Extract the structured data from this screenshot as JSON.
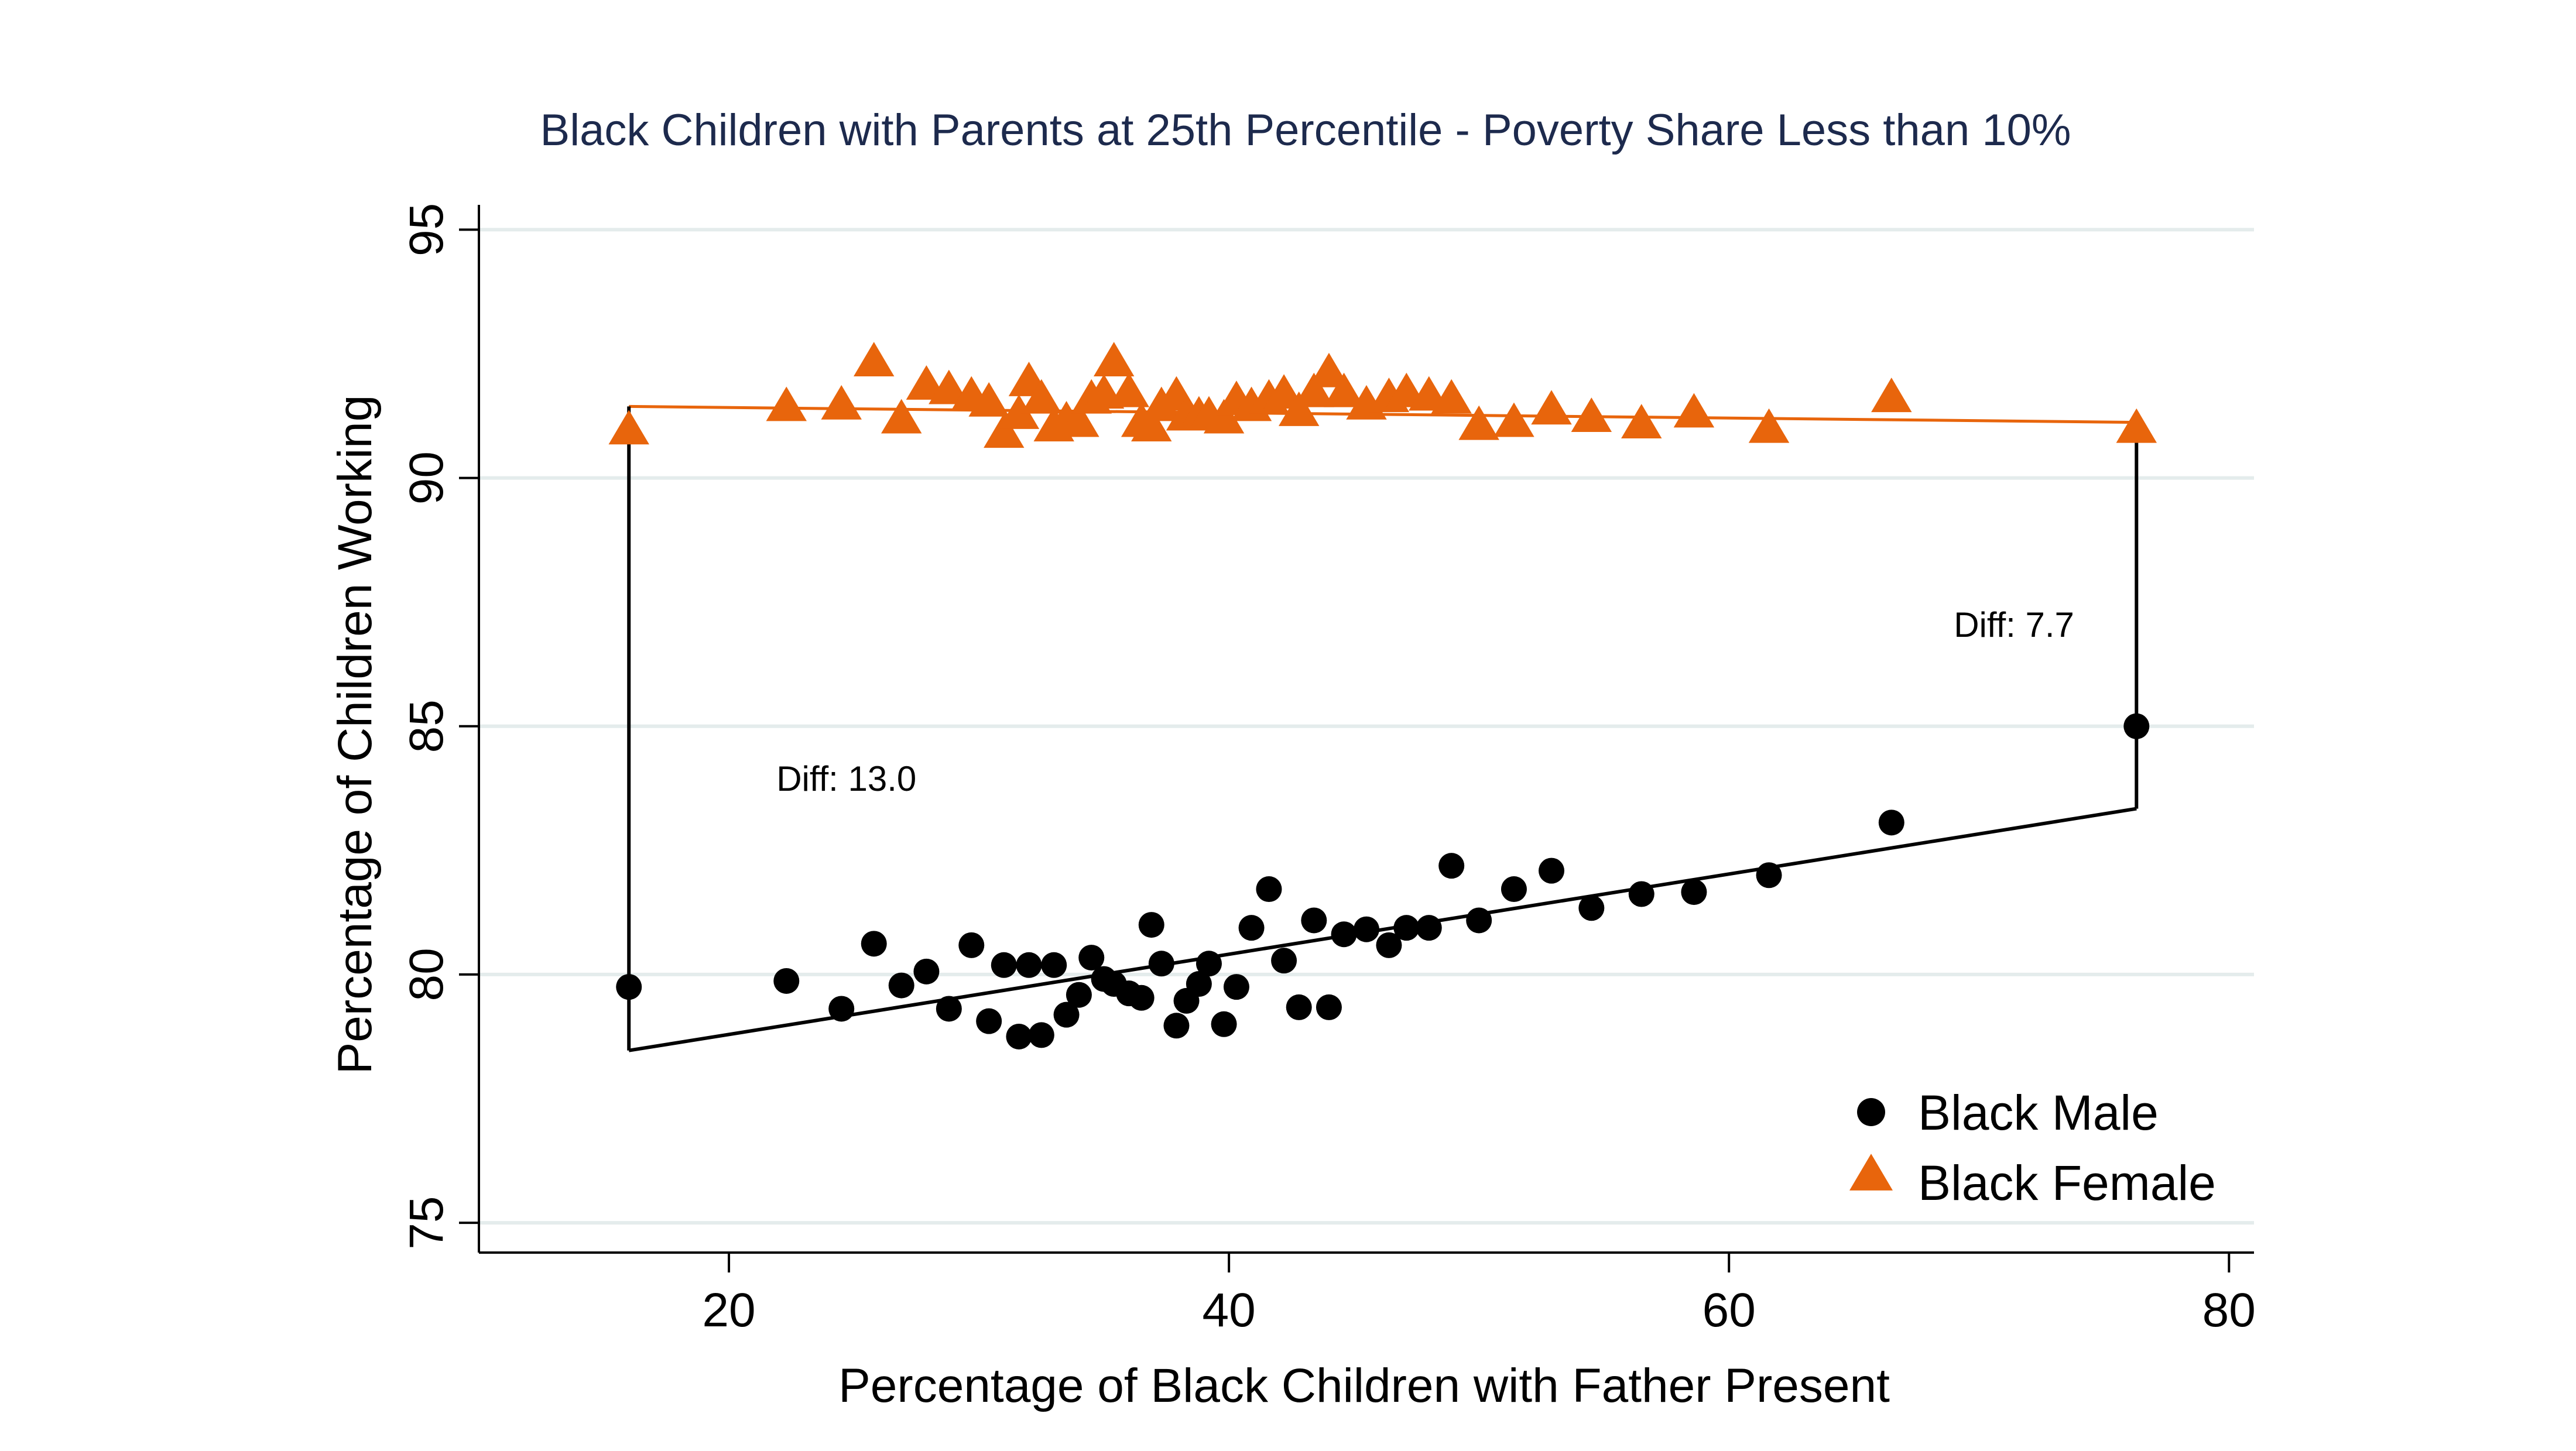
{
  "chart_data": {
    "type": "scatter",
    "title": "Black Children with Parents at 25th Percentile - Poverty Share Less than 10%",
    "xlabel": "Percentage of Black Children with Father Present",
    "ylabel": "Percentage of Children Working",
    "xlim": [
      10,
      81
    ],
    "ylim": [
      74.4,
      95.5
    ],
    "xticks": [
      20,
      40,
      60,
      80
    ],
    "yticks": [
      75,
      80,
      85,
      90,
      95
    ],
    "xtick_labels": [
      "20",
      "40",
      "60",
      "80"
    ],
    "ytick_labels": [
      "75",
      "80",
      "85",
      "90",
      "95"
    ],
    "grid": "horizontal",
    "legend_position": "bottom-right",
    "colors": {
      "male": "#000000",
      "female": "#e8650c",
      "grid": "#e4ecec",
      "title": "#1d2a4d"
    },
    "series": [
      {
        "name": "Black Male",
        "marker": "circle",
        "points": [
          [
            16.0,
            79.75
          ],
          [
            22.3,
            79.87
          ],
          [
            24.5,
            79.31
          ],
          [
            25.8,
            80.62
          ],
          [
            26.9,
            79.78
          ],
          [
            27.9,
            80.06
          ],
          [
            28.8,
            79.31
          ],
          [
            29.7,
            80.59
          ],
          [
            30.4,
            79.06
          ],
          [
            31.0,
            80.19
          ],
          [
            31.6,
            78.75
          ],
          [
            32.0,
            80.19
          ],
          [
            32.5,
            78.78
          ],
          [
            33.0,
            80.19
          ],
          [
            33.5,
            79.19
          ],
          [
            34.0,
            79.59
          ],
          [
            34.5,
            80.34
          ],
          [
            35.0,
            79.91
          ],
          [
            35.4,
            79.81
          ],
          [
            36.0,
            79.62
          ],
          [
            36.5,
            79.53
          ],
          [
            36.9,
            81.0
          ],
          [
            37.3,
            80.22
          ],
          [
            37.9,
            78.97
          ],
          [
            38.3,
            79.47
          ],
          [
            38.8,
            79.81
          ],
          [
            39.2,
            80.22
          ],
          [
            39.8,
            79.0
          ],
          [
            40.3,
            79.75
          ],
          [
            40.9,
            80.94
          ],
          [
            41.6,
            81.72
          ],
          [
            42.2,
            80.28
          ],
          [
            42.8,
            79.34
          ],
          [
            43.4,
            81.09
          ],
          [
            44.0,
            79.34
          ],
          [
            44.6,
            80.81
          ],
          [
            45.5,
            80.91
          ],
          [
            46.4,
            80.59
          ],
          [
            47.1,
            80.94
          ],
          [
            48.0,
            80.94
          ],
          [
            48.9,
            82.19
          ],
          [
            50.0,
            81.09
          ],
          [
            51.4,
            81.72
          ],
          [
            52.9,
            82.09
          ],
          [
            54.5,
            81.34
          ],
          [
            56.5,
            81.62
          ],
          [
            58.6,
            81.66
          ],
          [
            61.6,
            82.0
          ],
          [
            66.5,
            83.06
          ],
          [
            76.3,
            85.0
          ]
        ],
        "fit_line": [
          [
            16.0,
            78.47
          ],
          [
            76.3,
            83.34
          ]
        ]
      },
      {
        "name": "Black Female",
        "marker": "triangle",
        "points": [
          [
            16.0,
            90.94
          ],
          [
            22.3,
            91.41
          ],
          [
            24.5,
            91.44
          ],
          [
            25.8,
            92.31
          ],
          [
            26.9,
            91.16
          ],
          [
            27.9,
            91.84
          ],
          [
            28.8,
            91.75
          ],
          [
            29.7,
            91.62
          ],
          [
            30.4,
            91.5
          ],
          [
            31.0,
            90.87
          ],
          [
            31.6,
            91.25
          ],
          [
            32.0,
            91.91
          ],
          [
            32.5,
            91.56
          ],
          [
            33.0,
            91.0
          ],
          [
            33.5,
            91.12
          ],
          [
            34.0,
            91.09
          ],
          [
            34.5,
            91.56
          ],
          [
            35.0,
            91.66
          ],
          [
            35.4,
            92.31
          ],
          [
            36.0,
            91.69
          ],
          [
            36.5,
            91.09
          ],
          [
            36.9,
            91.0
          ],
          [
            37.3,
            91.41
          ],
          [
            37.9,
            91.62
          ],
          [
            38.3,
            91.22
          ],
          [
            38.8,
            91.22
          ],
          [
            39.2,
            91.22
          ],
          [
            39.8,
            91.16
          ],
          [
            40.3,
            91.53
          ],
          [
            40.9,
            91.41
          ],
          [
            41.6,
            91.56
          ],
          [
            42.2,
            91.66
          ],
          [
            42.8,
            91.31
          ],
          [
            43.4,
            91.69
          ],
          [
            44.0,
            92.09
          ],
          [
            44.6,
            91.69
          ],
          [
            45.5,
            91.44
          ],
          [
            46.4,
            91.59
          ],
          [
            47.1,
            91.69
          ],
          [
            48.0,
            91.62
          ],
          [
            48.9,
            91.56
          ],
          [
            50.0,
            91.03
          ],
          [
            51.4,
            91.09
          ],
          [
            52.9,
            91.34
          ],
          [
            54.5,
            91.19
          ],
          [
            56.5,
            91.06
          ],
          [
            58.6,
            91.28
          ],
          [
            61.6,
            90.97
          ],
          [
            66.5,
            91.59
          ],
          [
            76.3,
            90.97
          ]
        ],
        "fit_line": [
          [
            16.0,
            91.44
          ],
          [
            76.3,
            91.12
          ]
        ]
      }
    ],
    "connector_lines": [
      {
        "x": 16.0,
        "y_from": 78.47,
        "y_to": 91.44
      },
      {
        "x": 76.3,
        "y_from": 83.34,
        "y_to": 91.12
      }
    ],
    "annotations": [
      {
        "text": "Diff: 13.0",
        "x": 24.7,
        "y": 83.7
      },
      {
        "text": "Diff: 7.7",
        "x": 71.4,
        "y": 86.8
      }
    ]
  }
}
